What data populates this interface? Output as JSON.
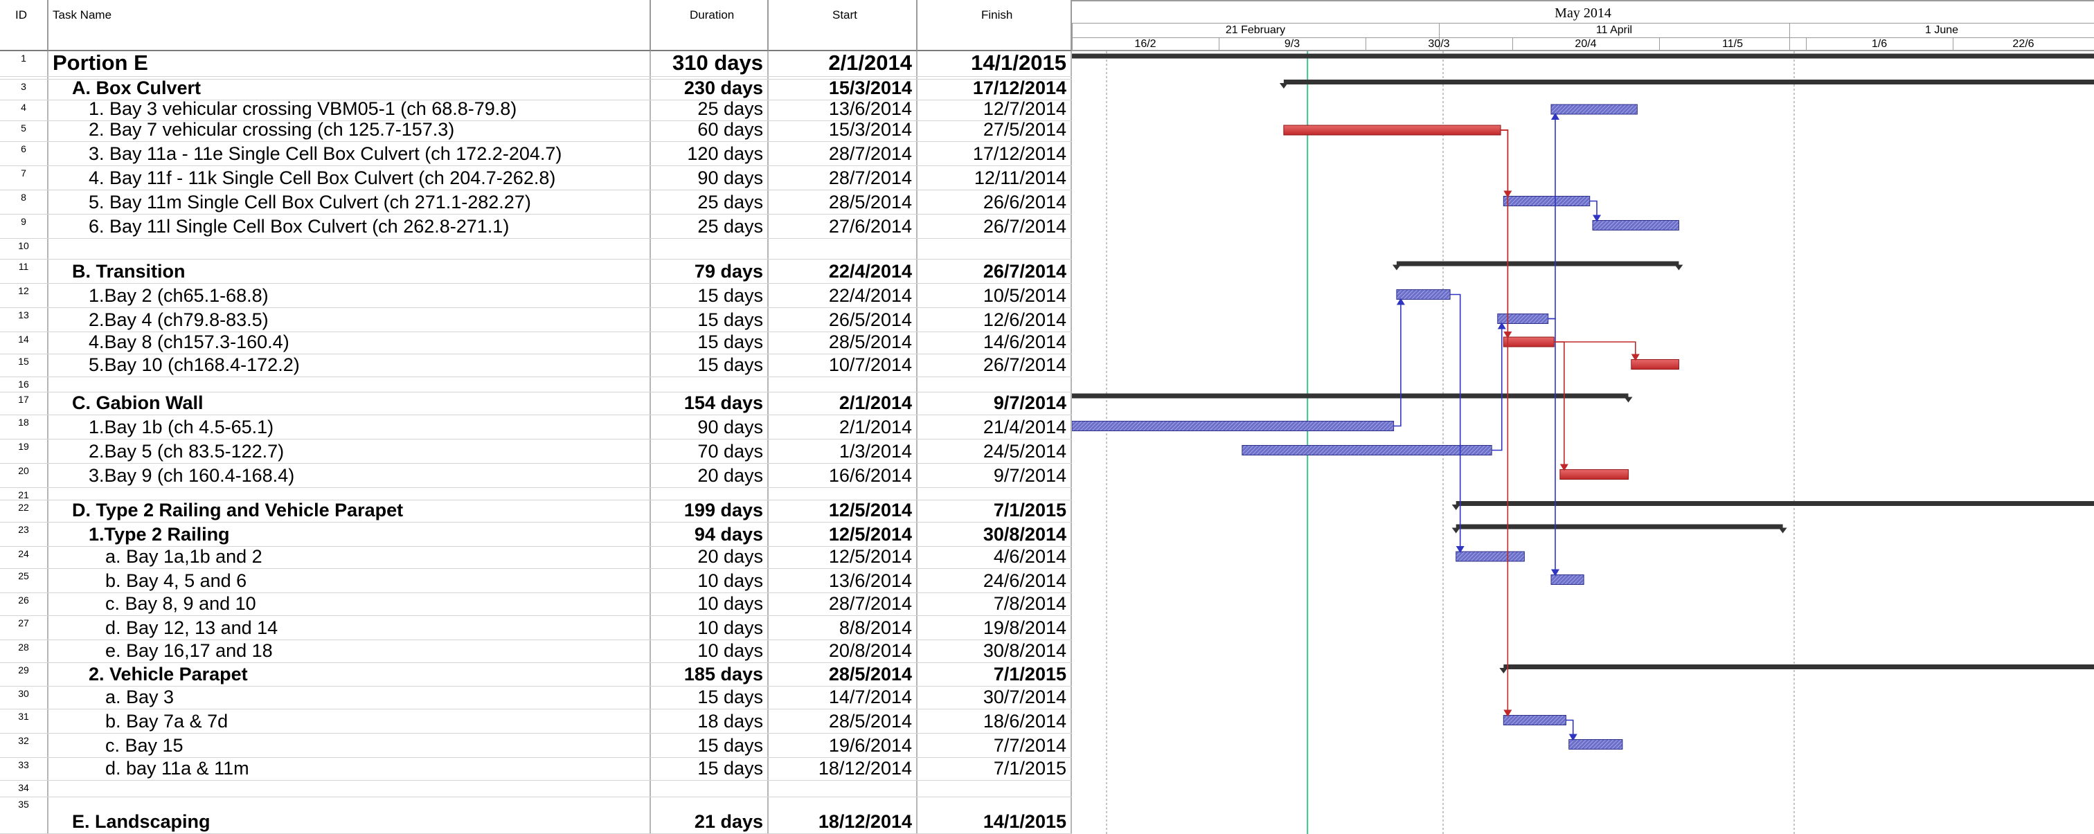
{
  "columns": {
    "id": "ID",
    "name": "Task Name",
    "duration": "Duration",
    "start": "Start",
    "finish": "Finish"
  },
  "timescale": {
    "month": "May 2014",
    "top_tier": [
      "21 February",
      "11 April",
      "1 June"
    ],
    "bottom_tier": [
      "16/2",
      "9/3",
      "30/3",
      "20/4",
      "11/5",
      "1/6",
      "22/6"
    ]
  },
  "colors": {
    "summary": "#333333",
    "critical": "#c0282a",
    "normal": "#6b6fc9",
    "link_blue": "#2f35c0",
    "link_red": "#c0282a",
    "today": "#3cc38a"
  },
  "rows": [
    {
      "id": "1",
      "name": "Portion E",
      "duration": "310 days",
      "start": "2/1/2014",
      "finish": "14/1/2015",
      "level": 0,
      "bold": true,
      "top": true
    },
    {
      "id": "2",
      "name": "",
      "duration": "",
      "start": "",
      "finish": "",
      "level": 0
    },
    {
      "id": "3",
      "name": "A. Box Culvert",
      "duration": "230 days",
      "start": "15/3/2014",
      "finish": "17/12/2014",
      "level": 1,
      "bold": true
    },
    {
      "id": "4",
      "name": "1. Bay 3 vehicular crossing VBM05-1 (ch 68.8-79.8)",
      "duration": "25 days",
      "start": "13/6/2014",
      "finish": "12/7/2014",
      "level": 2
    },
    {
      "id": "5",
      "name": "2. Bay 7 vehicular crossing (ch 125.7-157.3)",
      "duration": "60 days",
      "start": "15/3/2014",
      "finish": "27/5/2014",
      "level": 2
    },
    {
      "id": "6",
      "name": "3. Bay 11a - 11e Single Cell Box Culvert (ch 172.2-204.7)",
      "duration": "120 days",
      "start": "28/7/2014",
      "finish": "17/12/2014",
      "level": 2
    },
    {
      "id": "7",
      "name": "4. Bay 11f - 11k Single Cell Box Culvert (ch 204.7-262.8)",
      "duration": "90 days",
      "start": "28/7/2014",
      "finish": "12/11/2014",
      "level": 2
    },
    {
      "id": "8",
      "name": "5. Bay 11m Single Cell Box Culvert (ch 271.1-282.27)",
      "duration": "25 days",
      "start": "28/5/2014",
      "finish": "26/6/2014",
      "level": 2
    },
    {
      "id": "9",
      "name": "6. Bay 11l Single Cell Box Culvert (ch 262.8-271.1)",
      "duration": "25 days",
      "start": "27/6/2014",
      "finish": "26/7/2014",
      "level": 2
    },
    {
      "id": "10",
      "name": "",
      "duration": "",
      "start": "",
      "finish": "",
      "level": 0
    },
    {
      "id": "11",
      "name": "B. Transition",
      "duration": "79 days",
      "start": "22/4/2014",
      "finish": "26/7/2014",
      "level": 1,
      "bold": true
    },
    {
      "id": "12",
      "name": "1.Bay 2 (ch65.1-68.8)",
      "duration": "15 days",
      "start": "22/4/2014",
      "finish": "10/5/2014",
      "level": 2
    },
    {
      "id": "13",
      "name": "2.Bay 4 (ch79.8-83.5)",
      "duration": "15 days",
      "start": "26/5/2014",
      "finish": "12/6/2014",
      "level": 2
    },
    {
      "id": "14",
      "name": "4.Bay 8 (ch157.3-160.4)",
      "duration": "15 days",
      "start": "28/5/2014",
      "finish": "14/6/2014",
      "level": 2
    },
    {
      "id": "15",
      "name": "5.Bay 10 (ch168.4-172.2)",
      "duration": "15 days",
      "start": "10/7/2014",
      "finish": "26/7/2014",
      "level": 2
    },
    {
      "id": "16",
      "name": "",
      "duration": "",
      "start": "",
      "finish": "",
      "level": 0
    },
    {
      "id": "17",
      "name": "C. Gabion Wall",
      "duration": "154 days",
      "start": "2/1/2014",
      "finish": "9/7/2014",
      "level": 1,
      "bold": true
    },
    {
      "id": "18",
      "name": "1.Bay 1b (ch 4.5-65.1)",
      "duration": "90 days",
      "start": "2/1/2014",
      "finish": "21/4/2014",
      "level": 2
    },
    {
      "id": "19",
      "name": "2.Bay 5 (ch 83.5-122.7)",
      "duration": "70 days",
      "start": "1/3/2014",
      "finish": "24/5/2014",
      "level": 2
    },
    {
      "id": "20",
      "name": "3.Bay 9 (ch 160.4-168.4)",
      "duration": "20 days",
      "start": "16/6/2014",
      "finish": "9/7/2014",
      "level": 2
    },
    {
      "id": "21",
      "name": "",
      "duration": "",
      "start": "",
      "finish": "",
      "level": 0
    },
    {
      "id": "22",
      "name": "D. Type 2 Railing and Vehicle Parapet",
      "duration": "199 days",
      "start": "12/5/2014",
      "finish": "7/1/2015",
      "level": 1,
      "bold": true
    },
    {
      "id": "23",
      "name": "1.Type 2 Railing",
      "duration": "94 days",
      "start": "12/5/2014",
      "finish": "30/8/2014",
      "level": 2,
      "bold": true
    },
    {
      "id": "24",
      "name": "a. Bay 1a,1b and 2",
      "duration": "20 days",
      "start": "12/5/2014",
      "finish": "4/6/2014",
      "level": 3
    },
    {
      "id": "25",
      "name": "b. Bay 4, 5 and 6",
      "duration": "10 days",
      "start": "13/6/2014",
      "finish": "24/6/2014",
      "level": 3
    },
    {
      "id": "26",
      "name": "c. Bay 8, 9 and 10",
      "duration": "10 days",
      "start": "28/7/2014",
      "finish": "7/8/2014",
      "level": 3
    },
    {
      "id": "27",
      "name": "d. Bay 12, 13 and 14",
      "duration": "10 days",
      "start": "8/8/2014",
      "finish": "19/8/2014",
      "level": 3
    },
    {
      "id": "28",
      "name": "e. Bay 16,17 and 18",
      "duration": "10 days",
      "start": "20/8/2014",
      "finish": "30/8/2014",
      "level": 3
    },
    {
      "id": "29",
      "name": "2. Vehicle Parapet",
      "duration": "185 days",
      "start": "28/5/2014",
      "finish": "7/1/2015",
      "level": 2,
      "bold": true
    },
    {
      "id": "30",
      "name": "a. Bay 3",
      "duration": "15 days",
      "start": "14/7/2014",
      "finish": "30/7/2014",
      "level": 3
    },
    {
      "id": "31",
      "name": "b. Bay 7a & 7d",
      "duration": "18 days",
      "start": "28/5/2014",
      "finish": "18/6/2014",
      "level": 3
    },
    {
      "id": "32",
      "name": "c. Bay 15",
      "duration": "15 days",
      "start": "19/6/2014",
      "finish": "7/7/2014",
      "level": 3
    },
    {
      "id": "33",
      "name": "d. bay 11a & 11m",
      "duration": "15 days",
      "start": "18/12/2014",
      "finish": "7/1/2015",
      "level": 3
    },
    {
      "id": "34",
      "name": "",
      "duration": "",
      "start": "",
      "finish": "",
      "level": 0
    },
    {
      "id": "35",
      "name": "E. Landscaping",
      "duration": "21 days",
      "start": "18/12/2014",
      "finish": "14/1/2015",
      "level": 1,
      "bold": true
    }
  ],
  "gantt_bars": [
    {
      "row": "1",
      "kind": "summary",
      "start": "2/1/2014",
      "finish": "14/1/2015"
    },
    {
      "row": "3",
      "kind": "summary",
      "start": "15/3/2014",
      "finish": "17/12/2014"
    },
    {
      "row": "4",
      "kind": "normal",
      "start": "13/6/2014",
      "finish": "12/7/2014"
    },
    {
      "row": "5",
      "kind": "critical",
      "start": "15/3/2014",
      "finish": "27/5/2014"
    },
    {
      "row": "8",
      "kind": "normal",
      "start": "28/5/2014",
      "finish": "26/6/2014"
    },
    {
      "row": "9",
      "kind": "normal",
      "start": "27/6/2014",
      "finish": "26/7/2014"
    },
    {
      "row": "11",
      "kind": "summary",
      "start": "22/4/2014",
      "finish": "26/7/2014"
    },
    {
      "row": "12",
      "kind": "normal",
      "start": "22/4/2014",
      "finish": "10/5/2014"
    },
    {
      "row": "13",
      "kind": "normal",
      "start": "26/5/2014",
      "finish": "12/6/2014"
    },
    {
      "row": "14",
      "kind": "critical",
      "start": "28/5/2014",
      "finish": "14/6/2014"
    },
    {
      "row": "15",
      "kind": "critical",
      "start": "10/7/2014",
      "finish": "26/7/2014"
    },
    {
      "row": "17",
      "kind": "summary",
      "start": "2/1/2014",
      "finish": "9/7/2014"
    },
    {
      "row": "18",
      "kind": "normal",
      "start": "2/1/2014",
      "finish": "21/4/2014"
    },
    {
      "row": "19",
      "kind": "normal",
      "start": "1/3/2014",
      "finish": "24/5/2014"
    },
    {
      "row": "20",
      "kind": "critical",
      "start": "16/6/2014",
      "finish": "9/7/2014"
    },
    {
      "row": "22",
      "kind": "summary",
      "start": "12/5/2014",
      "finish": "7/1/2015"
    },
    {
      "row": "23",
      "kind": "summary",
      "start": "12/5/2014",
      "finish": "30/8/2014"
    },
    {
      "row": "24",
      "kind": "normal",
      "start": "12/5/2014",
      "finish": "4/6/2014"
    },
    {
      "row": "25",
      "kind": "normal",
      "start": "13/6/2014",
      "finish": "24/6/2014"
    },
    {
      "row": "29",
      "kind": "summary",
      "start": "28/5/2014",
      "finish": "7/1/2015"
    },
    {
      "row": "31",
      "kind": "normal",
      "start": "28/5/2014",
      "finish": "18/6/2014"
    },
    {
      "row": "32",
      "kind": "normal",
      "start": "19/6/2014",
      "finish": "7/7/2014"
    }
  ],
  "links": [
    {
      "from": "18",
      "to": "12",
      "color": "link_blue"
    },
    {
      "from": "12",
      "to": "24",
      "color": "link_blue"
    },
    {
      "from": "19",
      "to": "13",
      "color": "link_blue"
    },
    {
      "from": "13",
      "to": "4",
      "color": "link_blue"
    },
    {
      "from": "13",
      "to": "25",
      "color": "link_blue"
    },
    {
      "from": "8",
      "to": "9",
      "color": "link_blue"
    },
    {
      "from": "31",
      "to": "32",
      "color": "link_blue"
    },
    {
      "from": "5",
      "to": "8",
      "color": "link_red"
    },
    {
      "from": "5",
      "to": "14",
      "color": "link_red"
    },
    {
      "from": "5",
      "to": "31",
      "color": "link_red"
    },
    {
      "from": "14",
      "to": "20",
      "color": "link_red"
    },
    {
      "from": "14",
      "to": "15",
      "color": "link_red"
    }
  ],
  "status_date": "23/3/2014"
}
